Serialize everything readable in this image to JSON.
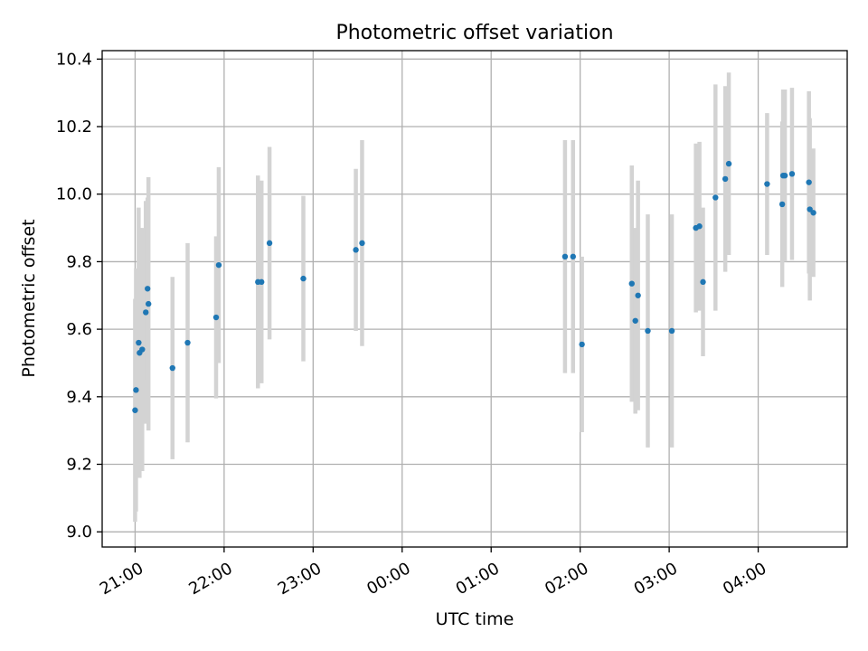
{
  "chart_data": {
    "type": "scatter",
    "title": "Photometric offset variation",
    "xlabel": "UTC time",
    "ylabel": "Photometric offset",
    "x_unit": "hours after 21:00 UTC",
    "xlim": [
      -0.37,
      8.0
    ],
    "ylim": [
      8.955,
      10.425
    ],
    "grid": true,
    "colors": {
      "point": "#1f77b4",
      "errorbar": "#d3d3d3"
    },
    "x_ticks": [
      {
        "value": 0,
        "label": "21:00"
      },
      {
        "value": 1,
        "label": "22:00"
      },
      {
        "value": 2,
        "label": "23:00"
      },
      {
        "value": 3,
        "label": "00:00"
      },
      {
        "value": 4,
        "label": "01:00"
      },
      {
        "value": 5,
        "label": "02:00"
      },
      {
        "value": 6,
        "label": "03:00"
      },
      {
        "value": 7,
        "label": "04:00"
      }
    ],
    "y_ticks": [
      {
        "value": 9.0,
        "label": "9.0"
      },
      {
        "value": 9.2,
        "label": "9.2"
      },
      {
        "value": 9.4,
        "label": "9.4"
      },
      {
        "value": 9.6,
        "label": "9.6"
      },
      {
        "value": 9.8,
        "label": "9.8"
      },
      {
        "value": 10.0,
        "label": "10.0"
      },
      {
        "value": 10.2,
        "label": "10.2"
      },
      {
        "value": 10.4,
        "label": "10.4"
      }
    ],
    "points": [
      {
        "x": 0.0,
        "y": 9.36,
        "err": 0.33
      },
      {
        "x": 0.01,
        "y": 9.42,
        "err": 0.36
      },
      {
        "x": 0.04,
        "y": 9.56,
        "err": 0.4
      },
      {
        "x": 0.05,
        "y": 9.53,
        "err": 0.37
      },
      {
        "x": 0.08,
        "y": 9.54,
        "err": 0.36
      },
      {
        "x": 0.12,
        "y": 9.65,
        "err": 0.33
      },
      {
        "x": 0.14,
        "y": 9.72,
        "err": 0.27
      },
      {
        "x": 0.15,
        "y": 9.675,
        "err": 0.375
      },
      {
        "x": 0.42,
        "y": 9.485,
        "err": 0.27
      },
      {
        "x": 0.59,
        "y": 9.56,
        "err": 0.295
      },
      {
        "x": 0.91,
        "y": 9.635,
        "err": 0.24
      },
      {
        "x": 0.94,
        "y": 9.79,
        "err": 0.29
      },
      {
        "x": 1.38,
        "y": 9.74,
        "err": 0.315
      },
      {
        "x": 1.42,
        "y": 9.74,
        "err": 0.3
      },
      {
        "x": 1.51,
        "y": 9.855,
        "err": 0.285
      },
      {
        "x": 1.89,
        "y": 9.75,
        "err": 0.245
      },
      {
        "x": 2.48,
        "y": 9.835,
        "err": 0.24
      },
      {
        "x": 2.55,
        "y": 9.855,
        "err": 0.305
      },
      {
        "x": 4.83,
        "y": 9.815,
        "err": 0.345
      },
      {
        "x": 4.92,
        "y": 9.815,
        "err": 0.345
      },
      {
        "x": 5.02,
        "y": 9.555,
        "err": 0.26
      },
      {
        "x": 5.58,
        "y": 9.735,
        "err": 0.35
      },
      {
        "x": 5.62,
        "y": 9.625,
        "err": 0.275
      },
      {
        "x": 5.65,
        "y": 9.7,
        "err": 0.34
      },
      {
        "x": 5.76,
        "y": 9.595,
        "err": 0.345
      },
      {
        "x": 6.03,
        "y": 9.595,
        "err": 0.345
      },
      {
        "x": 6.3,
        "y": 9.9,
        "err": 0.25
      },
      {
        "x": 6.34,
        "y": 9.905,
        "err": 0.25
      },
      {
        "x": 6.38,
        "y": 9.74,
        "err": 0.22
      },
      {
        "x": 6.52,
        "y": 9.99,
        "err": 0.335
      },
      {
        "x": 6.63,
        "y": 10.045,
        "err": 0.275
      },
      {
        "x": 6.67,
        "y": 10.09,
        "err": 0.27
      },
      {
        "x": 7.1,
        "y": 10.03,
        "err": 0.21
      },
      {
        "x": 7.27,
        "y": 9.97,
        "err": 0.245
      },
      {
        "x": 7.28,
        "y": 10.055,
        "err": 0.255
      },
      {
        "x": 7.3,
        "y": 10.055,
        "err": 0.255
      },
      {
        "x": 7.38,
        "y": 10.06,
        "err": 0.255
      },
      {
        "x": 7.57,
        "y": 10.035,
        "err": 0.27
      },
      {
        "x": 7.58,
        "y": 9.955,
        "err": 0.27
      },
      {
        "x": 7.62,
        "y": 9.945,
        "err": 0.19
      }
    ]
  }
}
